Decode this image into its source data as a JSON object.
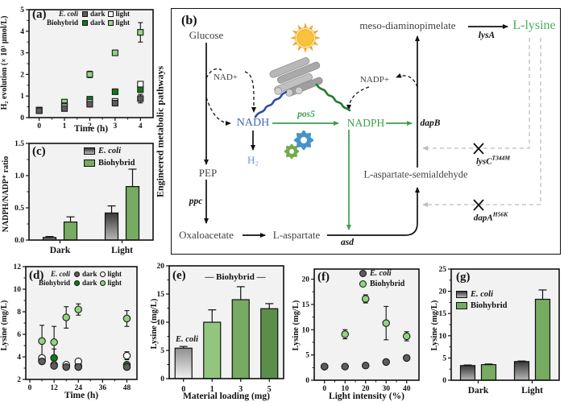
{
  "colors": {
    "plot_bg": "#f2f2f2",
    "marker_edge": "#1a1a1a",
    "ecoli_dark": "#5d5d5d",
    "ecoli_light": "#ffffff",
    "biohybrid_dark": "#117a17",
    "biohybrid_light": "#90d57f",
    "bar_green": "#76ab61",
    "gray_bar_top": "#383838",
    "gray_bar_bottom": "#b9b9b9",
    "light_gray_bar_top": "#8f8f8f",
    "light_gray_bar_bottom": "#f1f1f1",
    "greens_e": [
      "#93c57f",
      "#76ab61",
      "#5b8f49"
    ],
    "nadh_blue": "#4568b5",
    "h2_blue": "#6e94d6",
    "green_text": "#3aa04f",
    "lysine_green": "#4cae57",
    "feedback_gray": "#bdbdbd",
    "gear_blue": "#4793c9",
    "gear_green": "#72ab47",
    "sun_core": "#f7c23c",
    "sun_ray": "#eda32b",
    "rod_gray": "#b3b3b3"
  },
  "panel_b": {
    "label": "(b)",
    "side_label": "Engineered metabolic pathways",
    "nodes": {
      "glucose": "Glucose",
      "nad": "NAD+",
      "nadh": "NADH",
      "h2": "H₂",
      "pep": "PEP",
      "oxaloacetate": "Oxaloacetate",
      "l_aspartate": "L-aspartate",
      "l_asp_semialdehyde": "L-aspartate-semialdehyde",
      "meso_dap": "meso-diaminopimelate",
      "l_lysine": "L-lysine",
      "nadp": "NADP+",
      "nadph": "NADPH"
    },
    "enzymes": {
      "ppc": "ppc",
      "asd": "asd",
      "pos5": "pos5",
      "dapB": "dapB",
      "lysA": "lysA"
    },
    "mutants": [
      {
        "gene": "lysC",
        "sup": "T344M"
      },
      {
        "gene": "dapA",
        "sup": "H56K"
      }
    ],
    "icons": [
      "sun-icon",
      "nanorod-bundle-icon",
      "gears-icon"
    ]
  },
  "chart_data": [
    {
      "id": "a",
      "label": "(a)",
      "type": "scatter",
      "marker": "square",
      "xlabel": "Time (h)",
      "ylabel": "H₂ evolution (× 10³ μmol/L)",
      "xlim": [
        -0.4,
        4.5
      ],
      "ylim": [
        0,
        5
      ],
      "xticks": [
        0,
        1,
        2,
        3,
        4
      ],
      "yticks": [
        0,
        1,
        2,
        3,
        4,
        5
      ],
      "x": [
        0,
        1,
        2,
        3,
        4
      ],
      "series": [
        {
          "name": "E. coli dark",
          "color_key": "ecoli_dark",
          "y": [
            0.32,
            0.42,
            0.62,
            0.67,
            0.88
          ],
          "err": [
            0.04,
            0.05,
            0.08,
            0.12,
            0.2
          ]
        },
        {
          "name": "E. coli light",
          "color_key": "ecoli_light",
          "y": [
            0.33,
            0.5,
            0.7,
            0.75,
            1.55
          ],
          "err": [
            0.04,
            0.05,
            0.06,
            0.06,
            0.1
          ]
        },
        {
          "name": "Biohybrid dark",
          "color_key": "biohybrid_dark",
          "y": [
            0.34,
            0.55,
            0.85,
            1.2,
            1.3
          ],
          "err": [
            0.04,
            0.06,
            0.08,
            0.1,
            0.12
          ]
        },
        {
          "name": "Biohybrid light",
          "color_key": "biohybrid_light",
          "y": [
            0.35,
            0.72,
            2.0,
            3.0,
            3.95
          ],
          "err": [
            0.04,
            0.08,
            0.15,
            0.12,
            0.45
          ]
        }
      ],
      "legend": {
        "type": "pairs",
        "marker": "square",
        "dark_label": "dark",
        "light_label": "light",
        "rows": [
          {
            "name": "E. coli",
            "italic": true,
            "dark": "ecoli_dark",
            "light": "ecoli_light"
          },
          {
            "name": "Biohybrid",
            "italic": false,
            "dark": "biohybrid_dark",
            "light": "biohybrid_light"
          }
        ]
      }
    },
    {
      "id": "c",
      "label": "(c)",
      "type": "bar",
      "ylabel": "NADPH/NADP⁺ ratio",
      "categories": [
        "Dark",
        "Light"
      ],
      "ylim": [
        0,
        1.5
      ],
      "yticks": [
        0,
        0.5,
        1,
        1.5
      ],
      "ydecimals": 1,
      "series": [
        {
          "name": "E. coli",
          "fill": "gray_gradient",
          "values": [
            0.04,
            0.42
          ],
          "err": [
            0.015,
            0.11
          ]
        },
        {
          "name": "Biohybrid",
          "fill": "green",
          "values": [
            0.28,
            0.83
          ],
          "err": [
            0.08,
            0.27
          ]
        }
      ],
      "legend": {
        "type": "list",
        "shape": "rect",
        "entries": [
          {
            "label": "E. coli",
            "italic": true,
            "fill": "gray_gradient"
          },
          {
            "label": "Biohybrid",
            "italic": false,
            "fill": "green"
          }
        ]
      }
    },
    {
      "id": "d",
      "label": "(d)",
      "type": "scatter",
      "marker": "circle",
      "xlabel": "Time (h)",
      "ylabel": "Lysine (mg/L)",
      "xlim": [
        -2,
        53
      ],
      "ylim": [
        2,
        12
      ],
      "xticks": [
        0,
        12,
        24,
        36,
        48
      ],
      "yticks": [
        2,
        4,
        6,
        8,
        10,
        12
      ],
      "x": [
        6,
        12,
        18,
        24,
        48
      ],
      "series": [
        {
          "name": "E. coli dark",
          "color_key": "ecoli_dark",
          "y": [
            3.6,
            3.2,
            3.1,
            3.1,
            3.1
          ],
          "err": [
            0.15,
            0.1,
            0.1,
            0.1,
            0.1
          ]
        },
        {
          "name": "E. coli light",
          "color_key": "ecoli_light",
          "y": [
            3.9,
            3.3,
            3.3,
            3.6,
            4.1
          ],
          "err": [
            0.2,
            0.15,
            0.1,
            0.1,
            0.35
          ]
        },
        {
          "name": "Biohybrid dark",
          "color_key": "biohybrid_dark",
          "y": [
            3.7,
            3.9,
            3.2,
            3.2,
            3.3
          ],
          "err": [
            0.2,
            0.8,
            0.1,
            0.1,
            0.1
          ]
        },
        {
          "name": "Biohybrid light",
          "color_key": "biohybrid_light",
          "y": [
            5.4,
            5.3,
            7.5,
            8.2,
            7.4
          ],
          "err": [
            1.4,
            1.4,
            0.95,
            0.5,
            0.7
          ]
        }
      ],
      "legend": {
        "type": "pairs",
        "marker": "circle",
        "dark_label": "dark",
        "light_label": "light",
        "rows": [
          {
            "name": "E. coli",
            "italic": true,
            "dark": "ecoli_dark",
            "light": "ecoli_light"
          },
          {
            "name": "Biohybrid",
            "italic": false,
            "dark": "biohybrid_dark",
            "light": "biohybrid_light"
          }
        ]
      }
    },
    {
      "id": "e",
      "label": "(e)",
      "type": "bar",
      "xlabel": "Material loading (mg)",
      "ylabel": "Lysine (mg/L)",
      "categories": [
        "0",
        "1",
        "3",
        "5"
      ],
      "ylim": [
        0,
        20
      ],
      "yticks": [
        0,
        5,
        10,
        15,
        20
      ],
      "ydecimals": 0,
      "values": [
        5.4,
        10.0,
        14.0,
        12.4
      ],
      "err": [
        0.3,
        2.2,
        2.3,
        0.9
      ],
      "fills": [
        "light_gray_gradient",
        "green_0",
        "green_1",
        "green_2"
      ],
      "annotations": {
        "header": "— Biohybrid —",
        "first_bar": "E. coli"
      }
    },
    {
      "id": "f",
      "label": "(f)",
      "type": "scatter",
      "marker": "circle",
      "xlabel": "Light intensity (%)",
      "ylabel": "Lysine (mg/L)",
      "xlim": [
        -5,
        46
      ],
      "ylim": [
        0,
        22
      ],
      "xticks": [
        0,
        10,
        20,
        30,
        40
      ],
      "yticks": [
        0,
        5,
        10,
        15,
        20
      ],
      "x": [
        0,
        10,
        20,
        30,
        40
      ],
      "series": [
        {
          "name": "E. coli",
          "color_key": "ecoli_dark",
          "y": [
            2.7,
            2.7,
            2.9,
            3.6,
            4.4
          ],
          "err": [
            0.15,
            0.15,
            0.15,
            0.2,
            0.2
          ]
        },
        {
          "name": "Biohybrid",
          "color_key": "biohybrid_light",
          "y": [
            2.7,
            9.1,
            16.1,
            11.3,
            8.7
          ],
          "err": [
            0.2,
            0.9,
            0.8,
            3.3,
            0.9
          ]
        }
      ],
      "legend": {
        "type": "list",
        "shape": "circle",
        "entries": [
          {
            "label": "E. coli",
            "italic": true,
            "fill": "ecoli_dark"
          },
          {
            "label": "Biohybrid",
            "italic": false,
            "fill": "biohybrid_light"
          }
        ]
      }
    },
    {
      "id": "g",
      "label": "(g)",
      "type": "bar",
      "ylabel": "Lysine (mg/L)",
      "categories": [
        "Dark",
        "Light"
      ],
      "ylim": [
        0,
        25
      ],
      "yticks": [
        0,
        5,
        10,
        15,
        20,
        25
      ],
      "ydecimals": 0,
      "series": [
        {
          "name": "E. coli",
          "fill": "gray_gradient",
          "values": [
            3.3,
            4.2
          ],
          "err": [
            0.12,
            0.12
          ]
        },
        {
          "name": "Biohybrid",
          "fill": "green",
          "values": [
            3.5,
            18.2
          ],
          "err": [
            0.15,
            2.1
          ]
        }
      ],
      "legend": {
        "type": "list",
        "shape": "rect",
        "entries": [
          {
            "label": "E. coli",
            "italic": true,
            "fill": "gray_gradient"
          },
          {
            "label": "Biohybrid",
            "italic": false,
            "fill": "green"
          }
        ]
      }
    }
  ]
}
